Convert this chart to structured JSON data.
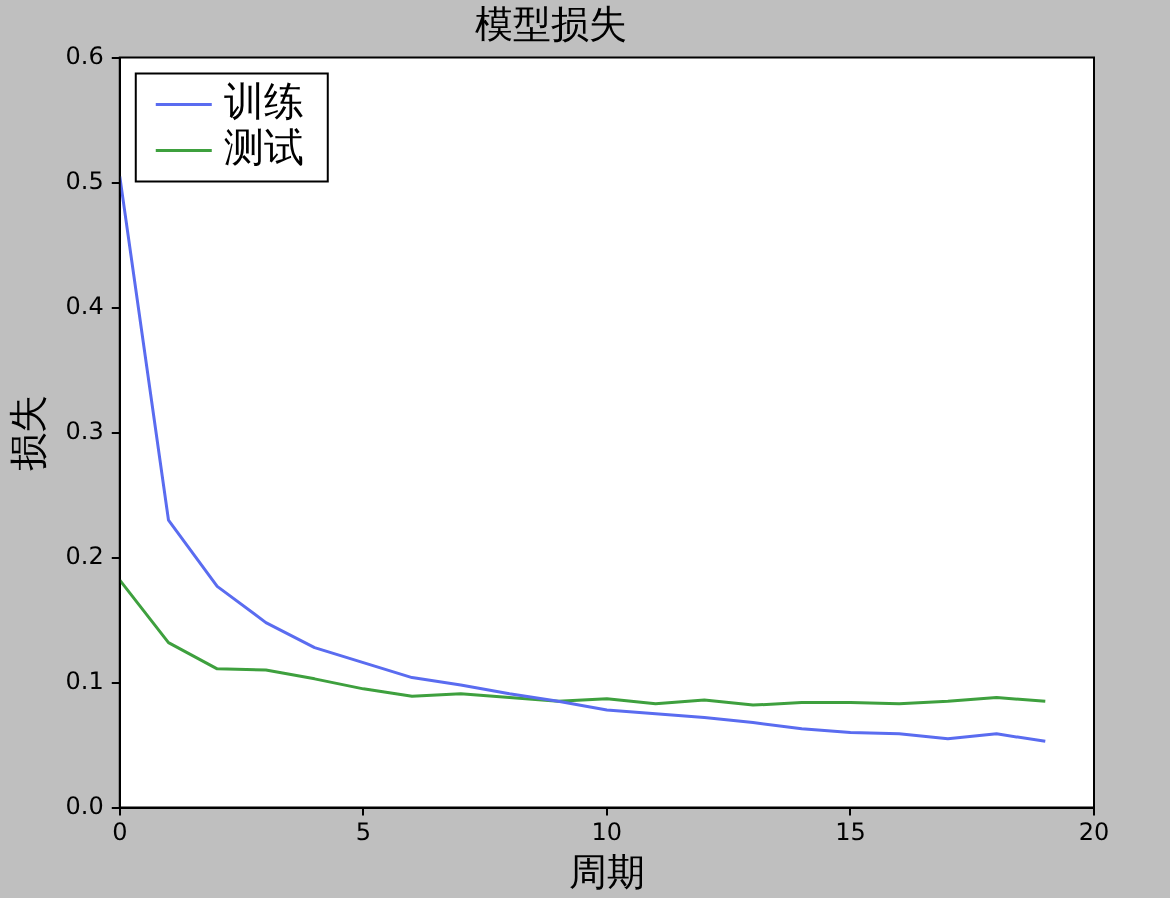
{
  "chart_data": {
    "type": "line",
    "title": "模型损失",
    "xlabel": "周期",
    "ylabel": "损失",
    "x": [
      0,
      1,
      2,
      3,
      4,
      5,
      6,
      7,
      8,
      9,
      10,
      11,
      12,
      13,
      14,
      15,
      16,
      17,
      18,
      19
    ],
    "series": [
      {
        "name": "训练",
        "color": "#5a6cf0",
        "values": [
          0.505,
          0.23,
          0.177,
          0.148,
          0.128,
          0.116,
          0.104,
          0.098,
          0.091,
          0.085,
          0.078,
          0.075,
          0.072,
          0.068,
          0.063,
          0.06,
          0.059,
          0.055,
          0.059,
          0.053
        ]
      },
      {
        "name": "测试",
        "color": "#3ea03e",
        "values": [
          0.182,
          0.132,
          0.111,
          0.11,
          0.103,
          0.095,
          0.089,
          0.091,
          0.088,
          0.085,
          0.087,
          0.083,
          0.086,
          0.082,
          0.084,
          0.084,
          0.083,
          0.085,
          0.088,
          0.085
        ]
      }
    ],
    "xlim": [
      0,
      20
    ],
    "xticks": [
      0,
      5,
      10,
      15,
      20
    ],
    "ylim": [
      0,
      0.6
    ],
    "yticks": [
      {
        "value": 0,
        "label": "0.0"
      },
      {
        "value": 0.1,
        "label": "0.1"
      },
      {
        "value": 0.2,
        "label": "0.2"
      },
      {
        "value": 0.3,
        "label": "0.3"
      },
      {
        "value": 0.4,
        "label": "0.4"
      },
      {
        "value": 0.5,
        "label": "0.5"
      },
      {
        "value": 0.6,
        "label": "0.6"
      }
    ],
    "legend": "top left",
    "marker": "none",
    "line_style": "solid"
  }
}
